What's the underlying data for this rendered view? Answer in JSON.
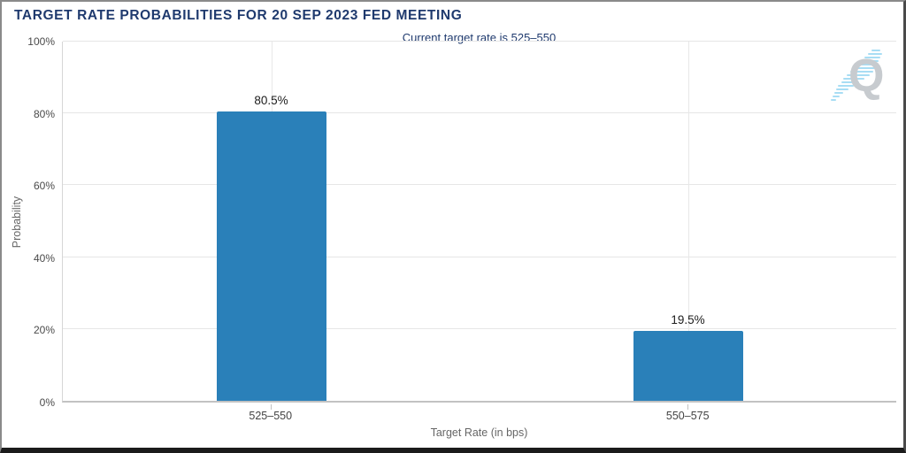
{
  "header": {
    "title": "TARGET RATE PROBABILITIES FOR 20 SEP 2023 FED MEETING",
    "subtitle": "Current target rate is 525–550"
  },
  "chart_data": {
    "type": "bar",
    "title": "TARGET RATE PROBABILITIES FOR 20 SEP 2023 FED MEETING",
    "subtitle": "Current target rate is 525–550",
    "categories": [
      "525–550",
      "550–575"
    ],
    "values": [
      80.5,
      19.5
    ],
    "value_labels": [
      "80.5%",
      "19.5%"
    ],
    "xlabel": "Target Rate (in bps)",
    "ylabel": "Probability",
    "ylim": [
      0,
      100
    ],
    "yticks": [
      "0%",
      "20%",
      "40%",
      "60%",
      "80%",
      "100%"
    ],
    "grid": true,
    "legend": "none",
    "bar_color": "#2a80b9"
  },
  "logo": {
    "letter": "Q"
  },
  "colors": {
    "title_navy": "#1f3a6e",
    "bar_blue": "#2a80b9",
    "gridline": "#e6e6e6",
    "axis_line": "#c2c2c2",
    "tick_label": "#4a4a4a",
    "axis_title": "#666666",
    "logo_gray": "#c7cbcf",
    "logo_cyan": "#a8ddf4"
  }
}
